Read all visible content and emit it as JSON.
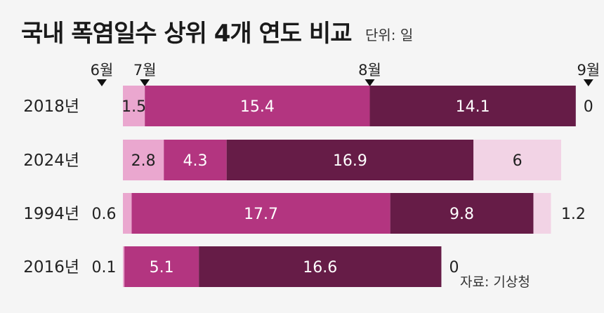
{
  "title": "국내 폭염일수 상위 4개 연도 비교",
  "unit": "단위: 일",
  "source": "자료: 기상청",
  "chart_data": {
    "type": "bar",
    "orientation": "horizontal",
    "stacked": true,
    "title": "국내 폭염일수 상위 4개 연도 비교",
    "unit": "단위: 일",
    "categories": [
      "2018년",
      "2024년",
      "1994년",
      "2016년"
    ],
    "months": [
      "6월",
      "7월",
      "8월",
      "9월"
    ],
    "series": [
      {
        "name": "6월",
        "color": "#eaa7cf",
        "values": [
          1.5,
          2.8,
          0.6,
          0.1
        ]
      },
      {
        "name": "7월",
        "color": "#b33580",
        "values": [
          15.4,
          4.3,
          17.7,
          5.1
        ]
      },
      {
        "name": "8월",
        "color": "#661c47",
        "values": [
          14.1,
          16.9,
          9.8,
          16.6
        ]
      },
      {
        "name": "9월",
        "color": "#f2d3e5",
        "values": [
          0,
          6,
          1.2,
          0
        ]
      }
    ]
  }
}
